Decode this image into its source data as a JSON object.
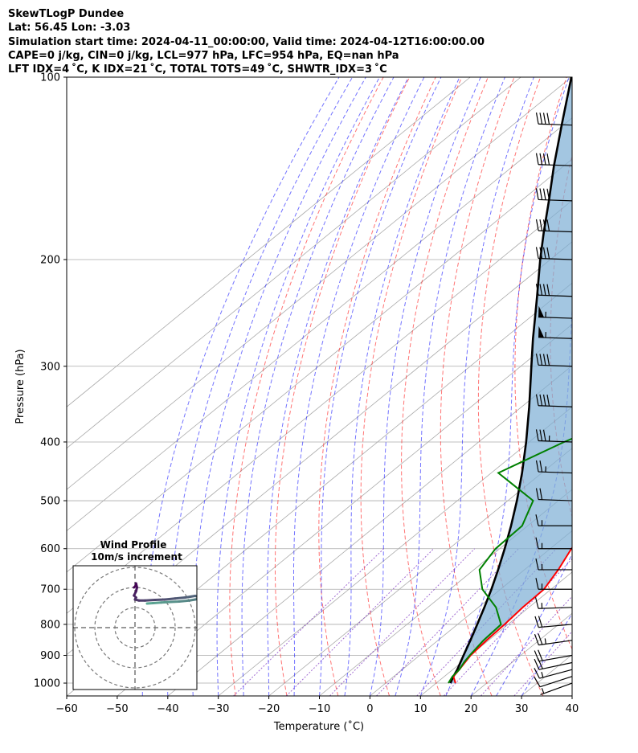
{
  "header": {
    "line1": "SkewTLogP Dundee",
    "line2": "Lat: 56.45   Lon: -3.03",
    "line3": "Simulation start time: 2024-04-11_00:00:00, Valid time: 2024-04-12T16:00:00.00",
    "line4": "CAPE=0 j/kg, CIN=0 j/kg, LCL=977 hPa, LFC=954 hPa, EQ=nan hPa",
    "line5": "LFT IDX=4 ˚C, K IDX=21 ˚C, TOTAL TOTS=49 ˚C, SHWTR_IDX=3 ˚C"
  },
  "chart_data": {
    "type": "line",
    "subtype": "skew-t log-p diagram",
    "xlabel": "Temperature (˚C)",
    "ylabel": "Pressure (hPa)",
    "xlim": [
      -60,
      40
    ],
    "ylim": [
      1050,
      100
    ],
    "x_ticks": [
      -60,
      -50,
      -40,
      -30,
      -20,
      -10,
      0,
      10,
      20,
      30,
      40
    ],
    "x_tick_labels": [
      "−60",
      "−50",
      "−40",
      "−30",
      "−20",
      "−10",
      "0",
      "10",
      "20",
      "30",
      "40"
    ],
    "y_ticks": [
      100,
      200,
      300,
      400,
      500,
      600,
      700,
      800,
      900,
      1000
    ],
    "y_tick_labels": [
      "100",
      "200",
      "300",
      "400",
      "500",
      "600",
      "700",
      "800",
      "900",
      "1000"
    ],
    "pressure_levels": [
      1000,
      975,
      950,
      925,
      900,
      850,
      800,
      750,
      700,
      650,
      600,
      550,
      500,
      450,
      400,
      350,
      300,
      270,
      250,
      230,
      200,
      180,
      160,
      140,
      120,
      100
    ],
    "series": [
      {
        "name": "Temperature",
        "color": "#ff0000",
        "values": [
          13.8,
          11.8,
          11.3,
          10.7,
          10.1,
          9.6,
          9.3,
          8.8,
          8.6,
          6.7,
          4.2,
          2.6,
          0.6,
          -0.9,
          -3.9,
          -8.7,
          -14.3,
          -17.7,
          -18.9,
          -17.9,
          -16.3,
          -16.5,
          -15.1,
          -13.2,
          -11.0,
          -9.5
        ]
      },
      {
        "name": "Dewpoint",
        "color": "#008000",
        "values": [
          12.4,
          11.6,
          11.3,
          10.5,
          9.9,
          9.0,
          8.6,
          3.5,
          -3.6,
          -8.9,
          -10.8,
          -11.1,
          -15.0,
          -28.6,
          -23.1,
          -15.0,
          -19.0,
          -22.5,
          -22.2,
          -25.5,
          -36.8,
          -39.8,
          -45.3,
          -50.0,
          -57.9,
          -62.3
        ]
      },
      {
        "name": "Parcel profile",
        "color": "#000000",
        "values": [
          12.8,
          11.8,
          10.9,
          9.8,
          8.7,
          6.4,
          3.9,
          1.2,
          -1.8,
          -5.2,
          -9.0,
          -13.3,
          -18.2,
          -23.9,
          -30.6,
          -38.5,
          -47.9,
          -54.3,
          -58.8,
          -63.7,
          -72.0,
          -78.0,
          -84.5,
          -92.0,
          -100.3,
          -110.0
        ]
      }
    ],
    "shaded_region": "between temperature and parcel profile",
    "wind_barbs_pressure": [
      1000,
      975,
      950,
      925,
      900,
      850,
      800,
      750,
      700,
      650,
      600,
      550,
      500,
      450,
      400,
      350,
      300,
      270,
      250,
      230,
      200,
      180,
      160,
      140,
      120
    ],
    "wind_speed": [
      5,
      10,
      15,
      20,
      20,
      25,
      22,
      18,
      15,
      15,
      15,
      15,
      20,
      25,
      35,
      40,
      40,
      55,
      55,
      40,
      40,
      40,
      40,
      40,
      40
    ],
    "wind_dir": [
      250,
      252,
      255,
      258,
      260,
      262,
      265,
      268,
      270,
      270,
      270,
      270,
      272,
      272,
      272,
      272,
      272,
      272,
      272,
      272,
      272,
      272,
      272,
      272,
      272
    ],
    "background_lines": [
      "dry adiabats",
      "moist adiabats",
      "mixing ratio lines",
      "skewed isotherms"
    ],
    "hodograph": {
      "title": "Wind Profile",
      "subtitle": "10m/s increment",
      "rings_ms": [
        10,
        20,
        30
      ],
      "u": [
        6,
        9,
        13,
        18,
        22,
        27,
        30,
        32,
        31,
        30,
        25,
        20,
        15,
        10,
        5,
        2,
        0,
        0.5,
        -0.5,
        0.5,
        1,
        0.5,
        0.5,
        -0.5
      ],
      "v": [
        12,
        12.2,
        12.5,
        12.8,
        13,
        13.5,
        14,
        14.6,
        15.4,
        15.8,
        15,
        14.5,
        14,
        13.8,
        13.5,
        13.5,
        14,
        15,
        16,
        18,
        20,
        22,
        21,
        20
      ]
    }
  }
}
